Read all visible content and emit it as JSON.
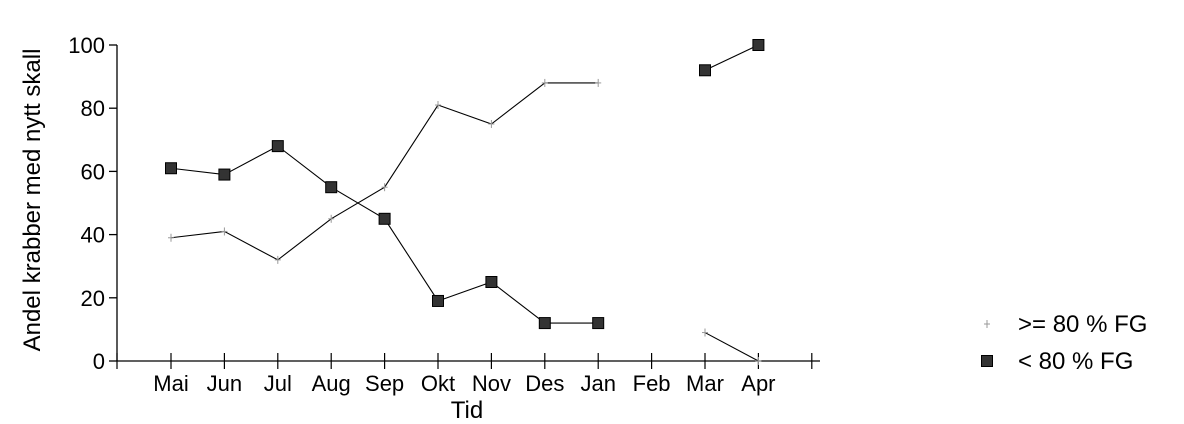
{
  "chart_data": {
    "type": "line",
    "categories": [
      "Mai",
      "Jun",
      "Jul",
      "Aug",
      "Sep",
      "Okt",
      "Nov",
      "Des",
      "Jan",
      "Feb",
      "Mar",
      "Apr"
    ],
    "series": [
      {
        "name": ">= 80 % FG",
        "values": [
          39,
          41,
          32,
          45,
          55,
          81,
          75,
          88,
          88,
          null,
          9,
          0
        ],
        "marker": "tick",
        "color": "#000000"
      },
      {
        "name": "< 80 % FG",
        "values": [
          61,
          59,
          68,
          55,
          45,
          19,
          25,
          12,
          12,
          null,
          92,
          100
        ],
        "marker": "square",
        "color": "#000000"
      }
    ],
    "xlabel": "Tid",
    "ylabel": "Andel krabber med nytt skall",
    "ylim": [
      0,
      100
    ],
    "yticks": [
      "0",
      "20",
      "40",
      "60",
      "80",
      "100"
    ],
    "grid": false,
    "legend_position": "right"
  }
}
